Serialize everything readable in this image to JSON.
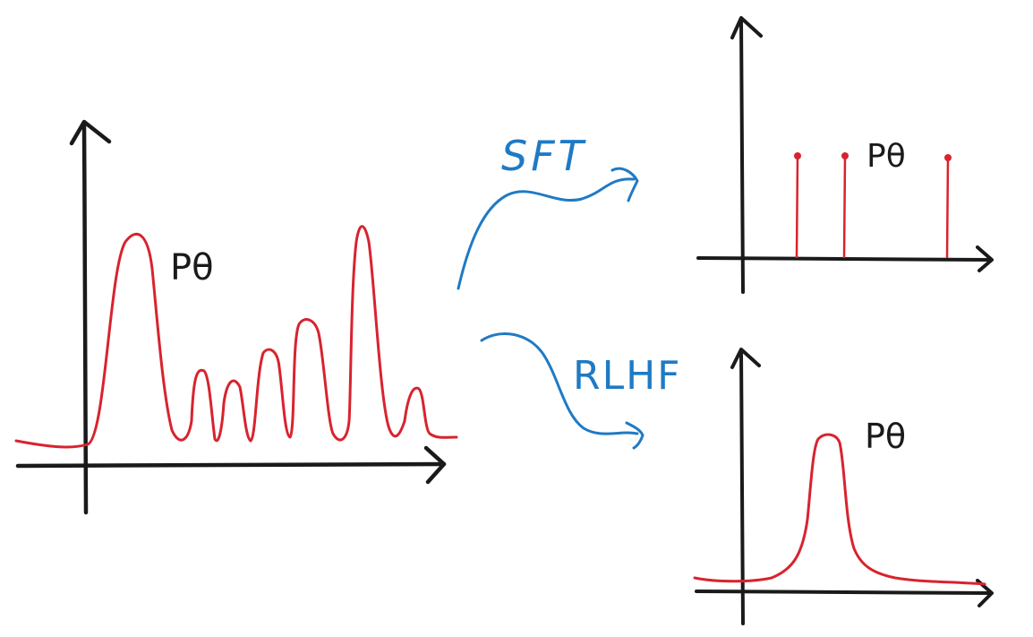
{
  "colors": {
    "axis": "#1a1a1a",
    "density": "#d8232e",
    "arrow": "#1f7ac4",
    "background": "#ffffff"
  },
  "panels": {
    "pretrained": {
      "label": "Pθ"
    },
    "sft": {
      "label": "Pθ"
    },
    "rlhf": {
      "label": "Pθ"
    }
  },
  "transitions": {
    "sft": {
      "label": "SFT"
    },
    "rlhf": {
      "label": "RLHF"
    }
  }
}
